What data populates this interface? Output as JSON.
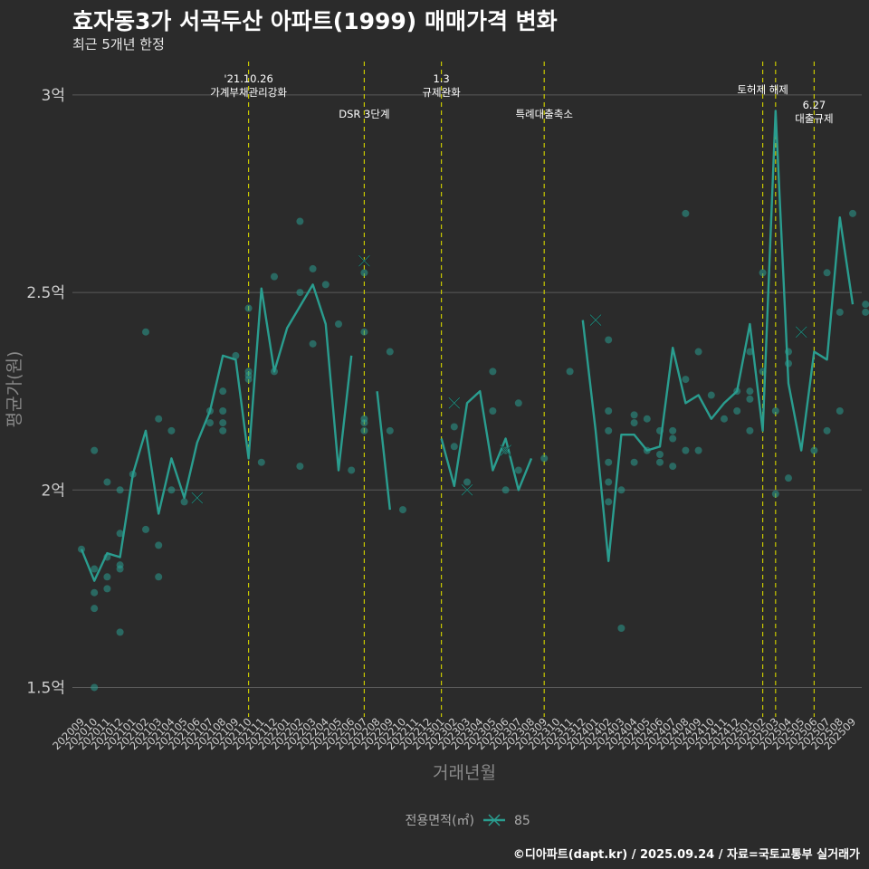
{
  "title": "효자동3가 서곡두산 아파트(1999) 매매가격 변화",
  "subtitle": "최근 5개년 한정",
  "footer": "©디아파트(dapt.kr) / 2025.09.24 / 자료=국토교통부 실거래가",
  "colors": {
    "background": "#2b2b2b",
    "series": "#2a9d8f",
    "event_line": "#c8c800",
    "grid": "#5a5a5a"
  },
  "chart_data": {
    "type": "line",
    "xlabel": "거래년월",
    "ylabel": "평균가(원)",
    "ylim": [
      1.43,
      3.08
    ],
    "yticks": [
      {
        "value": 1.5,
        "label": "1.5억"
      },
      {
        "value": 2.0,
        "label": "2억"
      },
      {
        "value": 2.5,
        "label": "2.5억"
      },
      {
        "value": 3.0,
        "label": "3억"
      }
    ],
    "x": [
      "202009",
      "202010",
      "202011",
      "202012",
      "202101",
      "202102",
      "202103",
      "202104",
      "202105",
      "202106",
      "202107",
      "202108",
      "202109",
      "202110",
      "202111",
      "202112",
      "202201",
      "202202",
      "202203",
      "202204",
      "202205",
      "202206",
      "202207",
      "202208",
      "202209",
      "202210",
      "202211",
      "202212",
      "202301",
      "202302",
      "202303",
      "202304",
      "202305",
      "202306",
      "202307",
      "202308",
      "202309",
      "202310",
      "202311",
      "202312",
      "202401",
      "202402",
      "202403",
      "202404",
      "202405",
      "202406",
      "202407",
      "202408",
      "202409",
      "202410",
      "202411",
      "202412",
      "202501",
      "202502",
      "202503",
      "202504",
      "202505",
      "202506",
      "202507",
      "202508",
      "202509"
    ],
    "legend": {
      "title": "전용면적(㎡)",
      "entries": [
        "85"
      ],
      "position": "bottom"
    },
    "events": [
      {
        "x": "202110",
        "label": "'21.10.26\n가계부채관리강화"
      },
      {
        "x": "202207",
        "label": "DSR 3단계"
      },
      {
        "x": "202301",
        "label": "1.3\n규제완화"
      },
      {
        "x": "202309",
        "label": "특례대출축소"
      },
      {
        "x": "202502",
        "label": "토허제 해제"
      },
      {
        "x": "202503",
        "label": ""
      },
      {
        "x": "202506",
        "label": "6.27\n대출규제"
      }
    ],
    "series": [
      {
        "name": "85",
        "line": [
          [
            0,
            1.85
          ],
          [
            1,
            1.77
          ],
          [
            2,
            1.84
          ],
          [
            3,
            1.83
          ],
          [
            4,
            2.04
          ],
          [
            5,
            2.15
          ],
          [
            6,
            1.94
          ],
          [
            7,
            2.08
          ],
          [
            8,
            1.98
          ],
          [
            9,
            2.12
          ],
          [
            10,
            2.2
          ],
          [
            11,
            2.34
          ],
          [
            12,
            2.33
          ],
          [
            13,
            2.08
          ],
          [
            14,
            2.51
          ],
          [
            15,
            2.3
          ],
          [
            16,
            2.41
          ],
          [
            18,
            2.52
          ],
          [
            19,
            2.42
          ],
          [
            20,
            2.05
          ],
          [
            21,
            2.34
          ],
          null,
          [
            23,
            2.25
          ],
          [
            24,
            1.95
          ],
          null,
          [
            28,
            2.13
          ],
          [
            29,
            2.01
          ],
          [
            30,
            2.22
          ],
          [
            31,
            2.25
          ],
          [
            32,
            2.05
          ],
          [
            33,
            2.13
          ],
          [
            34,
            2.0
          ],
          [
            35,
            2.08
          ],
          null,
          [
            39,
            2.43
          ],
          [
            40,
            2.15
          ],
          [
            41,
            1.82
          ],
          [
            42,
            2.14
          ],
          [
            43,
            2.14
          ],
          [
            44,
            2.1
          ],
          [
            45,
            2.11
          ],
          [
            46,
            2.36
          ],
          [
            47,
            2.22
          ],
          [
            48,
            2.24
          ],
          [
            49,
            2.18
          ],
          [
            50,
            2.22
          ],
          [
            51,
            2.25
          ],
          [
            52,
            2.42
          ],
          [
            53,
            2.15
          ],
          [
            54,
            2.96
          ],
          [
            55,
            2.27
          ],
          [
            56,
            2.1
          ],
          [
            57,
            2.35
          ],
          [
            58,
            2.33
          ],
          [
            59,
            2.69
          ],
          [
            60,
            2.47
          ]
        ],
        "points": [
          [
            0,
            1.85
          ],
          [
            1,
            2.1
          ],
          [
            1,
            1.8
          ],
          [
            1,
            1.74
          ],
          [
            1,
            1.7
          ],
          [
            1,
            1.5
          ],
          [
            2,
            2.02
          ],
          [
            2,
            1.83
          ],
          [
            2,
            1.78
          ],
          [
            2,
            1.75
          ],
          [
            3,
            2.0
          ],
          [
            3,
            1.89
          ],
          [
            3,
            1.81
          ],
          [
            3,
            1.8
          ],
          [
            3,
            1.64
          ],
          [
            4,
            2.04
          ],
          [
            5,
            2.4
          ],
          [
            5,
            1.9
          ],
          [
            6,
            2.18
          ],
          [
            6,
            1.86
          ],
          [
            6,
            1.78
          ],
          [
            7,
            2.15
          ],
          [
            7,
            2.0
          ],
          [
            8,
            1.97
          ],
          [
            10,
            2.2
          ],
          [
            10,
            2.17
          ],
          [
            11,
            2.25
          ],
          [
            11,
            2.2
          ],
          [
            11,
            2.17
          ],
          [
            11,
            2.15
          ],
          [
            12,
            2.34
          ],
          [
            13,
            2.46
          ],
          [
            13,
            2.3
          ],
          [
            13,
            2.29
          ],
          [
            13,
            2.28
          ],
          [
            14,
            2.07
          ],
          [
            15,
            2.54
          ],
          [
            15,
            2.3
          ],
          [
            17,
            2.68
          ],
          [
            17,
            2.5
          ],
          [
            17,
            2.06
          ],
          [
            18,
            2.56
          ],
          [
            18,
            2.37
          ],
          [
            19,
            2.52
          ],
          [
            20,
            2.42
          ],
          [
            21,
            2.05
          ],
          [
            22,
            2.4
          ],
          [
            22,
            2.18
          ],
          [
            22,
            2.17
          ],
          [
            22,
            2.15
          ],
          [
            22,
            2.55
          ],
          [
            24,
            2.35
          ],
          [
            24,
            2.15
          ],
          [
            25,
            1.95
          ],
          [
            29,
            2.16
          ],
          [
            29,
            2.11
          ],
          [
            30,
            2.02
          ],
          [
            32,
            2.3
          ],
          [
            32,
            2.2
          ],
          [
            33,
            2.1
          ],
          [
            33,
            2.0
          ],
          [
            34,
            2.22
          ],
          [
            34,
            2.05
          ],
          [
            36,
            2.08
          ],
          [
            38,
            2.3
          ],
          [
            41,
            2.38
          ],
          [
            41,
            2.2
          ],
          [
            41,
            2.15
          ],
          [
            41,
            2.07
          ],
          [
            41,
            2.02
          ],
          [
            41,
            1.97
          ],
          [
            42,
            2.0
          ],
          [
            42,
            1.65
          ],
          [
            43,
            2.19
          ],
          [
            43,
            2.17
          ],
          [
            43,
            2.07
          ],
          [
            44,
            2.18
          ],
          [
            44,
            2.1
          ],
          [
            45,
            2.15
          ],
          [
            45,
            2.09
          ],
          [
            45,
            2.07
          ],
          [
            46,
            2.15
          ],
          [
            46,
            2.13
          ],
          [
            46,
            2.06
          ],
          [
            47,
            2.7
          ],
          [
            47,
            2.28
          ],
          [
            47,
            2.1
          ],
          [
            48,
            2.35
          ],
          [
            48,
            2.1
          ],
          [
            49,
            2.24
          ],
          [
            50,
            2.18
          ],
          [
            51,
            2.25
          ],
          [
            51,
            2.2
          ],
          [
            52,
            2.35
          ],
          [
            52,
            2.25
          ],
          [
            52,
            2.23
          ],
          [
            52,
            2.15
          ],
          [
            53,
            2.55
          ],
          [
            53,
            2.3
          ],
          [
            54,
            2.2
          ],
          [
            54,
            1.99
          ],
          [
            55,
            2.35
          ],
          [
            55,
            2.32
          ],
          [
            55,
            2.03
          ],
          [
            57,
            2.1
          ],
          [
            58,
            2.55
          ],
          [
            58,
            2.15
          ],
          [
            59,
            2.45
          ],
          [
            59,
            2.2
          ],
          [
            60,
            2.7
          ],
          [
            61,
            2.47
          ],
          [
            61,
            2.45
          ]
        ],
        "crosses": [
          [
            9,
            1.98
          ],
          [
            22,
            2.58
          ],
          [
            29,
            2.22
          ],
          [
            30,
            2.0
          ],
          [
            33,
            2.1
          ],
          [
            40,
            2.43
          ],
          [
            56,
            2.4
          ]
        ]
      }
    ]
  }
}
